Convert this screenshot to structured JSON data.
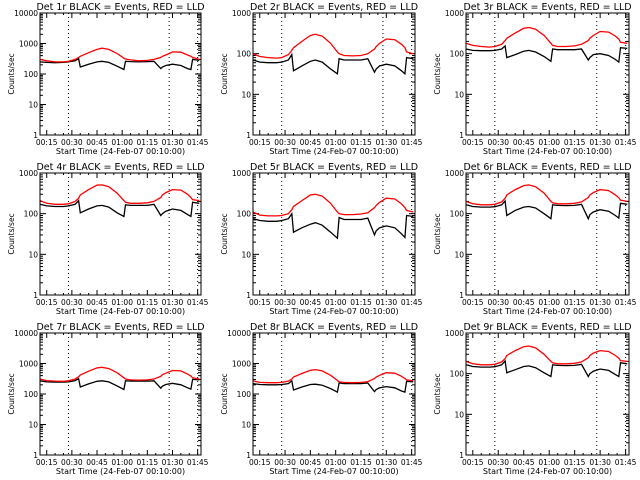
{
  "chart_data": {
    "type": "line",
    "layout": "3x3 grid of panels",
    "shared": {
      "xlabel": "Start Time (24-Feb-07 00:10:00)",
      "ylabel": "Counts/sec",
      "x_range_min": [
        11,
        107
      ],
      "x_ticks_min": [
        15,
        30,
        45,
        60,
        75,
        90,
        105
      ],
      "x_tick_labels": [
        "00:15",
        "00:30",
        "00:45",
        "01:00",
        "01:15",
        "01:30",
        "01:45"
      ],
      "y_scale": "log",
      "dotted_vertical_lines_min": [
        28,
        88,
        105
      ],
      "series_colors": {
        "Events": "#000000",
        "LLD": "#ff0000"
      },
      "x_samples_min": [
        11,
        15,
        20,
        25,
        28,
        32,
        34,
        35,
        40,
        45,
        48,
        52,
        57,
        61,
        62,
        65,
        70,
        75,
        79,
        83,
        84,
        86,
        90,
        95,
        99,
        101,
        102,
        106
      ]
    },
    "panels": [
      {
        "title": "Det 1r BLACK = Events, RED = LLD",
        "ylim": [
          1,
          10000
        ],
        "y_tick_labels": [
          "1",
          "10",
          "100",
          "1000",
          "10000"
        ],
        "series": [
          {
            "name": "Events",
            "values": [
              250,
              240,
              235,
              240,
              250,
              270,
              320,
              170,
              210,
              250,
              260,
              240,
              180,
              140,
              260,
              255,
              250,
              255,
              260,
              150,
              170,
              190,
              210,
              190,
              150,
              140,
              300,
              280
            ]
          },
          {
            "name": "LLD",
            "values": [
              300,
              270,
              250,
              250,
              260,
              300,
              350,
              380,
              500,
              640,
              700,
              640,
              470,
              330,
              310,
              290,
              270,
              280,
              300,
              350,
              380,
              420,
              530,
              520,
              420,
              380,
              350,
              300
            ]
          }
        ]
      },
      {
        "title": "Det 2r BLACK = Events, RED = LLD",
        "ylim": [
          1,
          1000
        ],
        "y_tick_labels": [
          "1",
          "10",
          "100",
          "1000"
        ],
        "series": [
          {
            "name": "Events",
            "values": [
              70,
              62,
              60,
              60,
              62,
              70,
              95,
              38,
              50,
              65,
              70,
              62,
              42,
              32,
              75,
              70,
              70,
              70,
              75,
              35,
              42,
              50,
              55,
              50,
              38,
              32,
              80,
              75
            ]
          },
          {
            "name": "LLD",
            "values": [
              100,
              85,
              80,
              78,
              80,
              95,
              120,
              140,
              200,
              280,
              300,
              270,
              180,
              110,
              100,
              90,
              88,
              90,
              100,
              130,
              150,
              180,
              230,
              220,
              170,
              140,
              110,
              100
            ]
          }
        ]
      },
      {
        "title": "Det 3r BLACK = Events, RED = LLD",
        "ylim": [
          1,
          1000
        ],
        "y_tick_labels": [
          "1",
          "10",
          "100",
          "1000"
        ],
        "series": [
          {
            "name": "Events",
            "values": [
              130,
              120,
              118,
              118,
              120,
              130,
              155,
              80,
              95,
              115,
              120,
              110,
              85,
              65,
              130,
              125,
              125,
              125,
              130,
              70,
              80,
              95,
              100,
              90,
              72,
              62,
              140,
              135
            ]
          },
          {
            "name": "LLD",
            "values": [
              180,
              160,
              150,
              145,
              150,
              170,
              210,
              240,
              320,
              420,
              440,
              400,
              280,
              180,
              160,
              150,
              150,
              155,
              170,
              210,
              240,
              280,
              350,
              340,
              270,
              230,
              190,
              180
            ]
          }
        ]
      },
      {
        "title": "Det 4r BLACK = Events, RED = LLD",
        "ylim": [
          1,
          1000
        ],
        "y_tick_labels": [
          "1",
          "10",
          "100",
          "1000"
        ],
        "series": [
          {
            "name": "Events",
            "values": [
              170,
              155,
              150,
              150,
              155,
              170,
              210,
              105,
              130,
              155,
              160,
              145,
              105,
              85,
              165,
              160,
              160,
              160,
              170,
              90,
              100,
              115,
              130,
              120,
              95,
              85,
              190,
              180
            ]
          },
          {
            "name": "LLD",
            "values": [
              210,
              180,
              170,
              170,
              175,
              200,
              240,
              290,
              390,
              500,
              510,
              460,
              320,
              210,
              190,
              180,
              180,
              185,
              200,
              250,
              290,
              330,
              390,
              380,
              300,
              250,
              220,
              210
            ]
          }
        ]
      },
      {
        "title": "Det 5r BLACK = Events, RED = LLD",
        "ylim": [
          1,
          1000
        ],
        "y_tick_labels": [
          "1",
          "10",
          "100",
          "1000"
        ],
        "series": [
          {
            "name": "Events",
            "values": [
              75,
              68,
              65,
              65,
              68,
              75,
              100,
              35,
              45,
              55,
              60,
              52,
              35,
              25,
              80,
              72,
              72,
              72,
              78,
              30,
              38,
              45,
              50,
              45,
              32,
              26,
              90,
              85
            ]
          },
          {
            "name": "LLD",
            "values": [
              110,
              92,
              88,
              88,
              90,
              100,
              125,
              150,
              210,
              290,
              300,
              270,
              180,
              110,
              100,
              95,
              95,
              98,
              105,
              140,
              160,
              190,
              240,
              230,
              175,
              140,
              120,
              110
            ]
          }
        ]
      },
      {
        "title": "Det 6r BLACK = Events, RED = LLD",
        "ylim": [
          1,
          1000
        ],
        "y_tick_labels": [
          "1",
          "10",
          "100",
          "1000"
        ],
        "series": [
          {
            "name": "Events",
            "values": [
              165,
              150,
              145,
              145,
              148,
              165,
              205,
              90,
              120,
              145,
              150,
              138,
              100,
              75,
              165,
              160,
              158,
              160,
              170,
              75,
              95,
              110,
              125,
              115,
              90,
              78,
              180,
              170
            ]
          },
          {
            "name": "LLD",
            "values": [
              200,
              175,
              165,
              165,
              170,
              195,
              240,
              290,
              390,
              490,
              510,
              460,
              320,
              200,
              185,
              175,
              175,
              180,
              195,
              250,
              290,
              330,
              390,
              370,
              290,
              245,
              215,
              200
            ]
          }
        ]
      },
      {
        "title": "Det 7r BLACK = Events, RED = LLD",
        "ylim": [
          1,
          10000
        ],
        "y_tick_labels": [
          "1",
          "10",
          "100",
          "1000",
          "10000"
        ],
        "series": [
          {
            "name": "Events",
            "values": [
              270,
              250,
              245,
              245,
              250,
              275,
              320,
              170,
              215,
              260,
              270,
              250,
              185,
              140,
              270,
              265,
              265,
              265,
              270,
              155,
              180,
              205,
              225,
              200,
              160,
              145,
              300,
              290
            ]
          },
          {
            "name": "LLD",
            "values": [
              310,
              275,
              265,
              260,
              270,
              310,
              370,
              420,
              560,
              720,
              750,
              680,
              500,
              340,
              310,
              290,
              285,
              290,
              310,
              380,
              430,
              480,
              590,
              570,
              450,
              390,
              340,
              310
            ]
          }
        ]
      },
      {
        "title": "Det 8r BLACK = Events, RED = LLD",
        "ylim": [
          1,
          10000
        ],
        "y_tick_labels": [
          "1",
          "10",
          "100",
          "1000",
          "10000"
        ],
        "series": [
          {
            "name": "Events",
            "values": [
              220,
              205,
              200,
              200,
              205,
              220,
              270,
              135,
              170,
              205,
              210,
              195,
              150,
              115,
              230,
              220,
              220,
              220,
              230,
              120,
              140,
              160,
              175,
              160,
              125,
              115,
              260,
              250
            ]
          },
          {
            "name": "LLD",
            "values": [
              270,
              240,
              235,
              235,
              240,
              265,
              310,
              360,
              470,
              600,
              630,
              570,
              410,
              280,
              250,
              240,
              235,
              240,
              255,
              320,
              360,
              410,
              500,
              480,
              380,
              320,
              290,
              270
            ]
          }
        ]
      },
      {
        "title": "Det 9r BLACK = Events, RED = LLD",
        "ylim": [
          1,
          1000
        ],
        "y_tick_labels": [
          "1",
          "10",
          "100",
          "1000"
        ],
        "series": [
          {
            "name": "Events",
            "values": [
              165,
              150,
              145,
              145,
              148,
              165,
              205,
              105,
              125,
              150,
              155,
              140,
              105,
              85,
              165,
              160,
              158,
              160,
              170,
              85,
              100,
              115,
              130,
              120,
              95,
              85,
              185,
              175
            ]
          },
          {
            "name": "LLD",
            "values": [
              200,
              175,
              165,
              165,
              170,
              195,
              235,
              280,
              370,
              460,
              480,
              430,
              300,
              200,
              185,
              175,
              175,
              180,
              195,
              245,
              280,
              320,
              370,
              350,
              280,
              240,
              210,
              200
            ]
          }
        ]
      }
    ]
  }
}
